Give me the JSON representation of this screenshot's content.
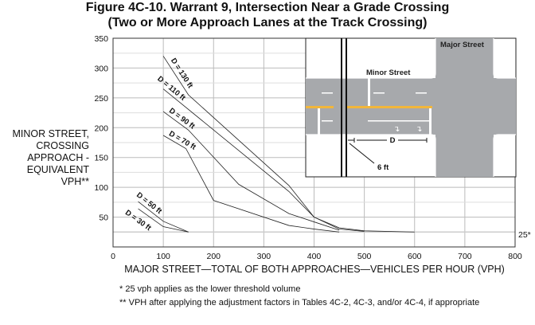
{
  "chart_data": {
    "type": "line",
    "title": "Figure 4C-10.  Warrant 9, Intersection Near a Grade Crossing",
    "subtitle": "(Two or More Approach Lanes at the Track Crossing)",
    "xlabel": "MAJOR STREET—TOTAL OF BOTH APPROACHES—VEHICLES PER HOUR (VPH)",
    "ylabel": [
      "MINOR STREET,",
      "CROSSING",
      "APPROACH -",
      "EQUIVALENT",
      "VPH**"
    ],
    "xlim": [
      0,
      800
    ],
    "ylim": [
      0,
      350
    ],
    "xticks": [
      0,
      100,
      200,
      300,
      400,
      500,
      600,
      700,
      800
    ],
    "yticks": [
      50,
      100,
      150,
      200,
      250,
      300,
      350
    ],
    "grid": true,
    "threshold_label": "25*",
    "threshold_value": 25,
    "series": [
      {
        "name": "D = 130 ft",
        "points": [
          [
            100,
            320
          ],
          [
            150,
            255
          ],
          [
            350,
            103
          ],
          [
            400,
            50
          ],
          [
            450,
            32
          ],
          [
            500,
            27
          ],
          [
            600,
            25
          ]
        ]
      },
      {
        "name": "D = 110 ft",
        "points": [
          [
            100,
            265
          ],
          [
            350,
            93
          ],
          [
            400,
            50
          ],
          [
            450,
            30
          ],
          [
            500,
            26
          ]
        ]
      },
      {
        "name": "D = 90 ft",
        "points": [
          [
            100,
            227
          ],
          [
            150,
            196
          ],
          [
            250,
            105
          ],
          [
            350,
            56
          ],
          [
            400,
            42
          ],
          [
            450,
            28
          ]
        ]
      },
      {
        "name": "D = 70 ft",
        "points": [
          [
            100,
            187
          ],
          [
            145,
            165
          ],
          [
            200,
            78
          ],
          [
            350,
            36
          ],
          [
            400,
            30
          ],
          [
            450,
            25
          ]
        ]
      },
      {
        "name": "D = 50 ft",
        "points": [
          [
            50,
            76
          ],
          [
            100,
            43
          ],
          [
            150,
            25
          ]
        ]
      },
      {
        "name": "D = 30 ft",
        "points": [
          [
            50,
            64
          ],
          [
            100,
            34
          ],
          [
            150,
            25
          ]
        ]
      }
    ]
  },
  "inset": {
    "major_street_label": "Major  Street",
    "minor_street_label": "Minor Street",
    "distance_label": "D",
    "offset_label": "6 ft"
  },
  "footnotes": [
    "*  25 vph applies as the lower threshold volume",
    "** VPH after applying the adjustment factors in Tables 4C-2, 4C-3, and/or 4C-4, if appropriate"
  ],
  "colors": {
    "road": "#a7a9ac",
    "centerline": "#f2b63a",
    "line": "#222222",
    "grid": "#bbbbbb"
  }
}
